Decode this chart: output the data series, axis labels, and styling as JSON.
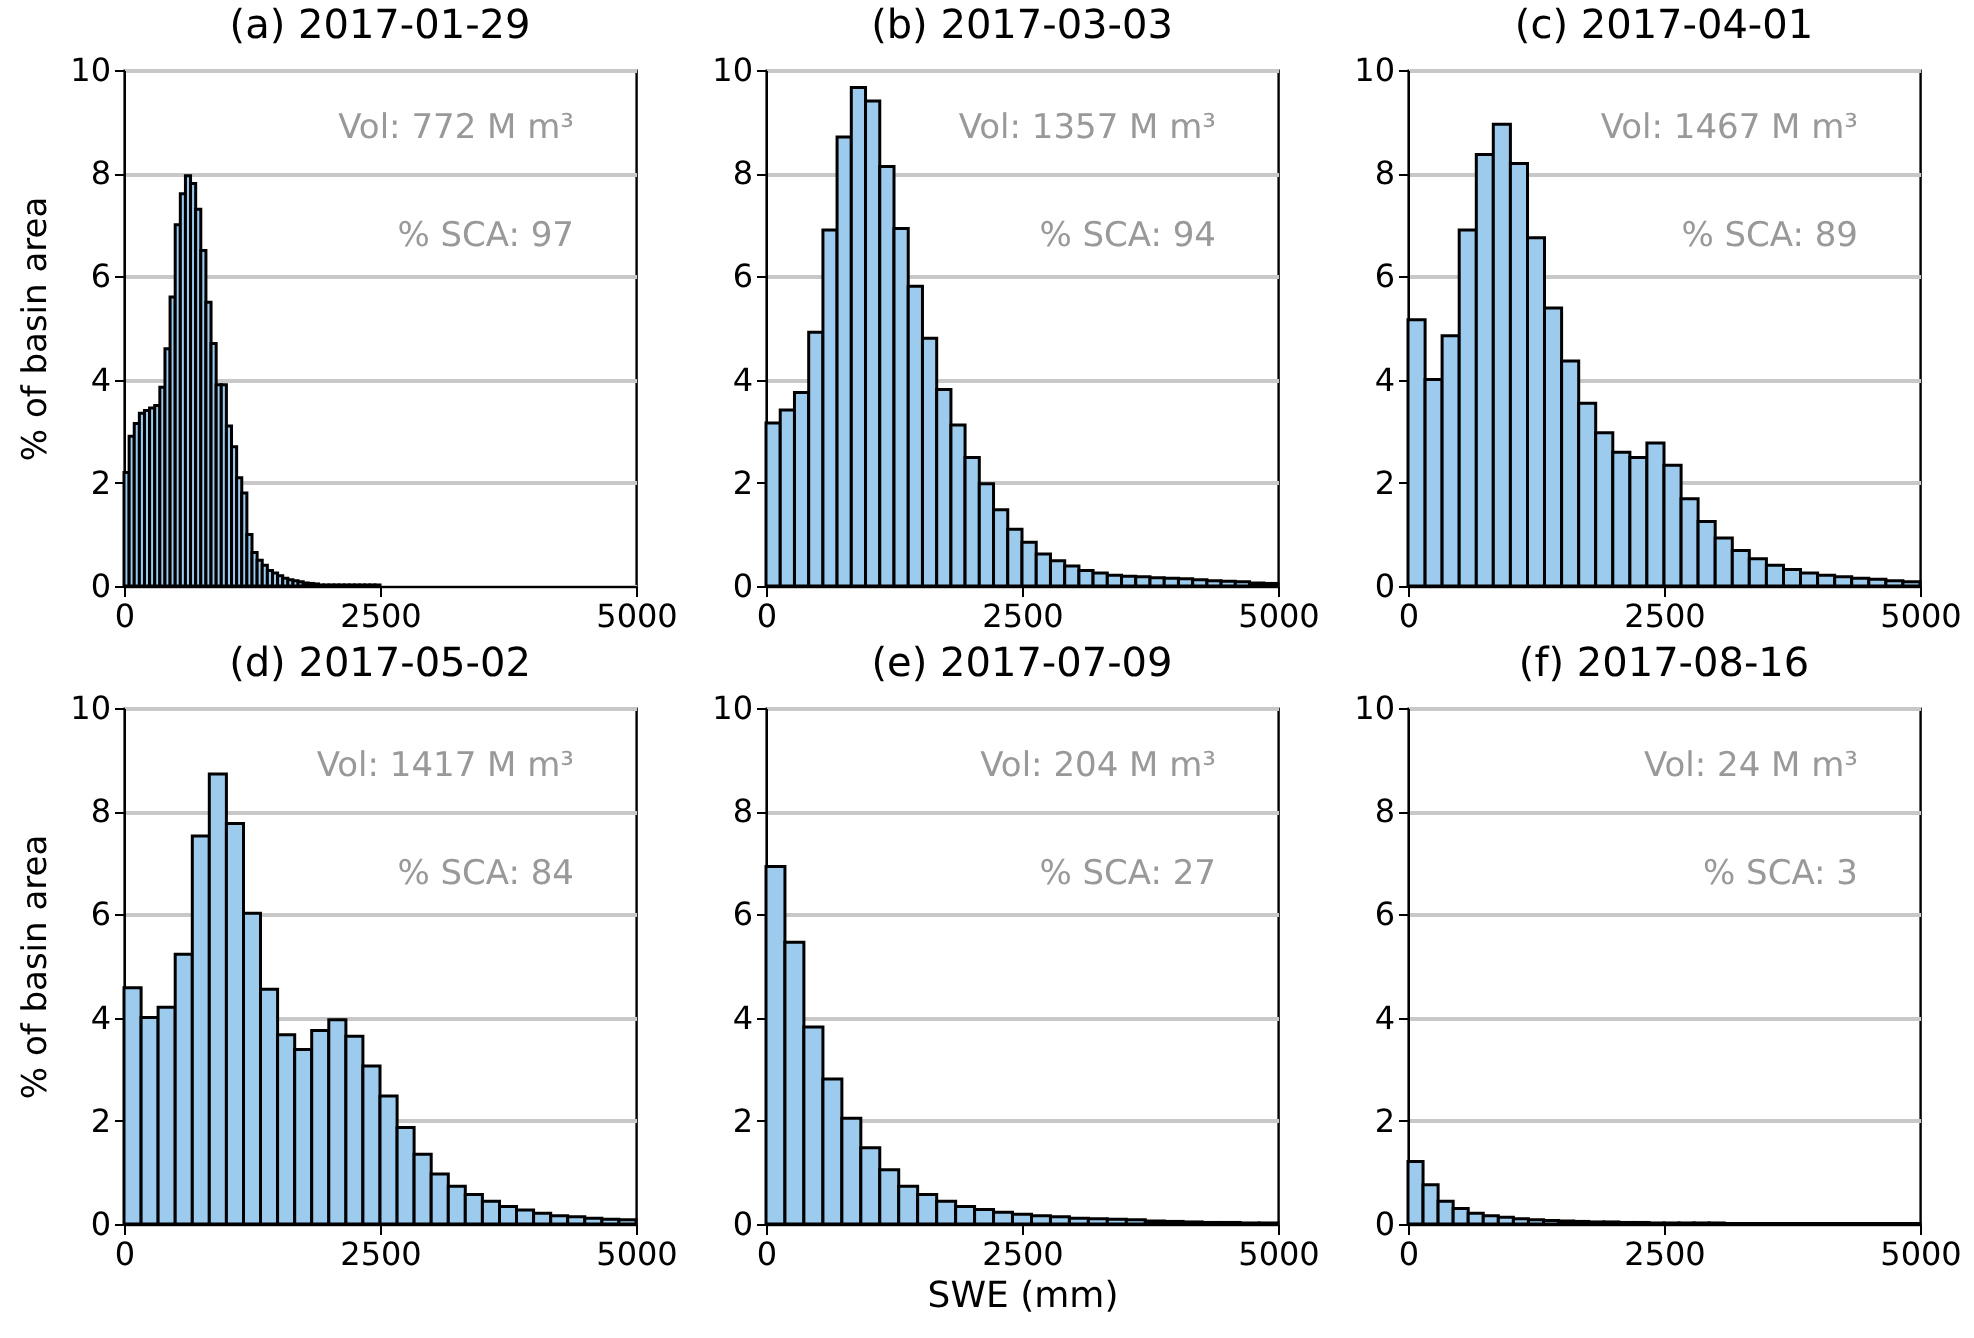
{
  "chart_data": [
    {
      "type": "histogram",
      "title": "(a) 2017-01-29",
      "ylabel": "% of basin area",
      "color": "#9ccbee",
      "annotations": [
        "Vol: 772 M m³",
        "% SCA: 97"
      ],
      "xlim": [
        0,
        5000
      ],
      "xticks": [
        0,
        2500,
        5000
      ],
      "ylim": [
        0,
        10
      ],
      "yticks": [
        0,
        2,
        4,
        6,
        8,
        10
      ],
      "grid": "y",
      "bins": [
        0,
        50,
        100,
        150,
        200,
        250,
        300,
        350,
        400,
        450,
        500,
        550,
        600,
        650,
        700,
        750,
        800,
        850,
        900,
        950,
        1000,
        1050,
        1100,
        1150,
        1200,
        1250,
        1300,
        1350,
        1400,
        1450,
        1500,
        1550,
        1600,
        1650,
        1700,
        1750,
        1800,
        1850,
        1900,
        1950,
        2000,
        2050,
        2100,
        2150,
        2200,
        2250,
        2300,
        2350,
        2400,
        2450,
        2500,
        2550,
        2600,
        2650,
        2700,
        2750,
        2800,
        2850,
        2900,
        2950,
        3000,
        3050,
        3100,
        3150,
        3200,
        3250,
        3300,
        3350,
        3400,
        3450,
        3500,
        3550,
        3600,
        3650,
        3700,
        3750,
        3800,
        3850,
        3900,
        3950,
        4000,
        4050,
        4100,
        4150,
        4200,
        4250,
        4300,
        4350,
        4400,
        4450,
        4500,
        4550,
        4600,
        4650,
        4700,
        4750,
        4800,
        4850,
        4900,
        4950,
        5000
      ],
      "values": [
        2.2,
        2.9,
        3.15,
        3.35,
        3.4,
        3.45,
        3.5,
        3.85,
        4.6,
        5.6,
        7.0,
        7.6,
        7.95,
        7.8,
        7.3,
        6.5,
        5.5,
        4.7,
        3.9,
        3.9,
        3.1,
        2.7,
        2.1,
        1.8,
        1.0,
        0.65,
        0.5,
        0.4,
        0.3,
        0.25,
        0.2,
        0.15,
        0.12,
        0.1,
        0.08,
        0.06,
        0.05,
        0.04,
        0.02,
        0.02,
        0.02,
        0.02,
        0.02,
        0.02,
        0.02,
        0.02,
        0.02,
        0.02,
        0.02,
        0.02,
        0,
        0,
        0,
        0,
        0,
        0,
        0,
        0,
        0,
        0,
        0,
        0,
        0,
        0,
        0,
        0,
        0,
        0,
        0,
        0,
        0,
        0,
        0,
        0,
        0,
        0,
        0,
        0,
        0,
        0,
        0,
        0,
        0,
        0,
        0,
        0,
        0,
        0,
        0,
        0,
        0,
        0,
        0,
        0,
        0,
        0,
        0,
        0,
        0,
        0
      ]
    },
    {
      "type": "histogram",
      "title": "(b) 2017-03-03",
      "color": "#9ccbee",
      "annotations": [
        "Vol: 1357 M m³",
        "% SCA: 94"
      ],
      "xlim": [
        0,
        5000
      ],
      "xticks": [
        0,
        2500,
        5000
      ],
      "ylim": [
        0,
        10
      ],
      "yticks": [
        0,
        2,
        4,
        6,
        8,
        10
      ],
      "grid": "y",
      "bins": [
        0,
        139,
        278,
        417,
        556,
        694,
        833,
        972,
        1111,
        1250,
        1389,
        1528,
        1667,
        1806,
        1944,
        2083,
        2222,
        2361,
        2500,
        2639,
        2778,
        2917,
        3056,
        3194,
        3333,
        3472,
        3611,
        3750,
        3889,
        4028,
        4167,
        4306,
        4444,
        4583,
        4722,
        4861,
        5000
      ],
      "values": [
        3.16,
        3.41,
        3.75,
        4.92,
        6.9,
        8.7,
        9.66,
        9.4,
        8.13,
        6.93,
        5.81,
        4.8,
        3.81,
        3.12,
        2.49,
        1.98,
        1.48,
        1.1,
        0.85,
        0.62,
        0.49,
        0.39,
        0.3,
        0.25,
        0.21,
        0.19,
        0.18,
        0.16,
        0.15,
        0.14,
        0.12,
        0.1,
        0.09,
        0.08,
        0.06,
        0.05
      ]
    },
    {
      "type": "histogram",
      "title": "(c) 2017-04-01",
      "color": "#9ccbee",
      "annotations": [
        "Vol: 1467 M m³",
        "% SCA: 89"
      ],
      "xlim": [
        0,
        5000
      ],
      "xticks": [
        0,
        2500,
        5000
      ],
      "ylim": [
        0,
        10
      ],
      "yticks": [
        0,
        2,
        4,
        6,
        8,
        10
      ],
      "grid": "y",
      "bins": [
        0,
        167,
        333,
        500,
        667,
        833,
        1000,
        1167,
        1333,
        1500,
        1667,
        1833,
        2000,
        2167,
        2333,
        2500,
        2667,
        2833,
        3000,
        3167,
        3333,
        3500,
        3667,
        3833,
        4000,
        4167,
        4333,
        4500,
        4667,
        4833,
        5000
      ],
      "values": [
        5.16,
        4.0,
        4.85,
        6.9,
        8.36,
        8.95,
        8.19,
        6.75,
        5.39,
        4.36,
        3.54,
        2.97,
        2.59,
        2.49,
        2.77,
        2.34,
        1.69,
        1.25,
        0.93,
        0.69,
        0.53,
        0.4,
        0.32,
        0.25,
        0.21,
        0.18,
        0.15,
        0.13,
        0.1,
        0.08
      ]
    },
    {
      "type": "histogram",
      "title": "(d) 2017-05-02",
      "ylabel": "% of basin area",
      "color": "#9ccbee",
      "annotations": [
        "Vol: 1417 M m³",
        "% SCA: 84"
      ],
      "xlim": [
        0,
        5000
      ],
      "xticks": [
        0,
        2500,
        5000
      ],
      "ylim": [
        0,
        10
      ],
      "yticks": [
        0,
        2,
        4,
        6,
        8,
        10
      ],
      "grid": "y",
      "bins": [
        0,
        167,
        333,
        500,
        667,
        833,
        1000,
        1167,
        1333,
        1500,
        1667,
        1833,
        2000,
        2167,
        2333,
        2500,
        2667,
        2833,
        3000,
        3167,
        3333,
        3500,
        3667,
        3833,
        4000,
        4167,
        4333,
        4500,
        4667,
        4833,
        5000
      ],
      "values": [
        4.58,
        4.0,
        4.2,
        5.23,
        7.52,
        8.72,
        7.76,
        6.02,
        4.55,
        3.67,
        3.38,
        3.75,
        3.96,
        3.64,
        3.06,
        2.48,
        1.87,
        1.35,
        0.97,
        0.73,
        0.57,
        0.44,
        0.34,
        0.27,
        0.21,
        0.16,
        0.14,
        0.11,
        0.09,
        0.08
      ]
    },
    {
      "type": "histogram",
      "title": "(e) 2017-07-09",
      "xlabel": "SWE (mm)",
      "color": "#9ccbee",
      "annotations": [
        "Vol: 204 M m³",
        "% SCA: 27"
      ],
      "xlim": [
        0,
        5000
      ],
      "xticks": [
        0,
        2500,
        5000
      ],
      "ylim": [
        0,
        10
      ],
      "yticks": [
        0,
        2,
        4,
        6,
        8,
        10
      ],
      "grid": "y",
      "bins": [
        0,
        185,
        370,
        556,
        741,
        926,
        1111,
        1296,
        1481,
        1667,
        1852,
        2037,
        2222,
        2407,
        2593,
        2778,
        2963,
        3148,
        3333,
        3519,
        3704,
        3889,
        4074,
        4259,
        4444,
        4630,
        4815,
        5000
      ],
      "values": [
        6.93,
        5.46,
        3.82,
        2.81,
        2.05,
        1.48,
        1.05,
        0.73,
        0.57,
        0.44,
        0.34,
        0.28,
        0.23,
        0.19,
        0.16,
        0.14,
        0.11,
        0.1,
        0.09,
        0.08,
        0.06,
        0.05,
        0.04,
        0.03,
        0.03,
        0.02,
        0.02
      ]
    },
    {
      "type": "histogram",
      "title": "(f) 2017-08-16",
      "color": "#9ccbee",
      "annotations": [
        "Vol: 24 M m³",
        "% SCA: 3"
      ],
      "xlim": [
        0,
        5000
      ],
      "xticks": [
        0,
        2500,
        5000
      ],
      "ylim": [
        0,
        10
      ],
      "yticks": [
        0,
        2,
        4,
        6,
        8,
        10
      ],
      "grid": "y",
      "bins": [
        0,
        147,
        294,
        441,
        588,
        735,
        882,
        1029,
        1176,
        1324,
        1471,
        1618,
        1765,
        1912,
        2059,
        2206,
        2353,
        2500,
        2647,
        2794,
        2941,
        3088,
        3235,
        3382,
        3529,
        3676,
        3824,
        3971,
        4118,
        4265,
        4412,
        4559,
        4706,
        4853,
        5000
      ],
      "values": [
        1.21,
        0.76,
        0.44,
        0.3,
        0.21,
        0.16,
        0.13,
        0.1,
        0.08,
        0.07,
        0.06,
        0.05,
        0.04,
        0.04,
        0.03,
        0.03,
        0.02,
        0.02,
        0.02,
        0.02,
        0.02,
        0.01,
        0.01,
        0.01,
        0.01,
        0.01,
        0.01,
        0.01,
        0.01,
        0.01,
        0.01,
        0.01,
        0.01,
        0.01
      ]
    }
  ]
}
